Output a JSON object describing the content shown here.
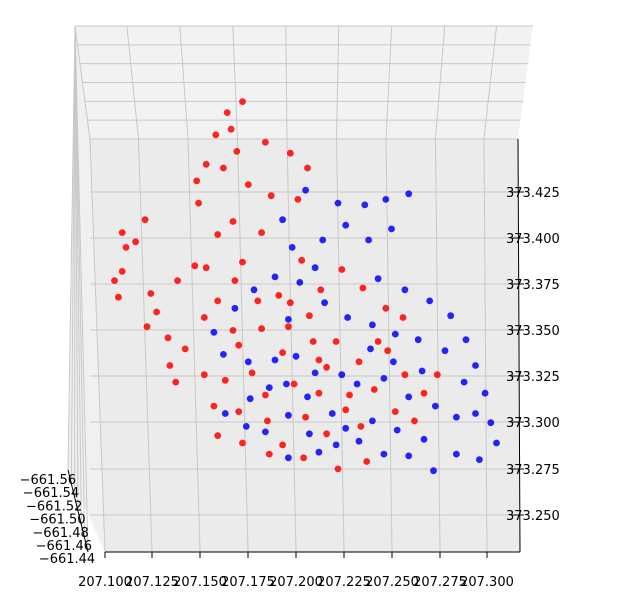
{
  "chart_data": {
    "type": "scatter3d",
    "title": "",
    "xlabel": "",
    "ylabel": "",
    "zlabel": "",
    "grid": true,
    "legend": "none",
    "x_ticks": [
      "207.100",
      "207.125",
      "207.150",
      "207.175",
      "207.200",
      "207.225",
      "207.250",
      "207.275",
      "207.300"
    ],
    "y_ticks": [
      "−661.56",
      "−661.54",
      "−661.52",
      "−661.50",
      "−661.48",
      "−661.46",
      "−661.44"
    ],
    "z_ticks": [
      "373.425",
      "373.400",
      "373.375",
      "373.350",
      "373.325",
      "373.300",
      "373.275",
      "373.250"
    ],
    "series": [
      {
        "color": "#ff0000",
        "points": [
          [
            207.149,
            373.419
          ],
          [
            207.159,
            373.402
          ],
          [
            207.147,
            373.385
          ],
          [
            207.133,
            373.346
          ],
          [
            207.127,
            373.36
          ],
          [
            207.116,
            373.398
          ],
          [
            207.111,
            373.395
          ],
          [
            207.109,
            373.382
          ],
          [
            207.105,
            373.377
          ],
          [
            207.107,
            373.368
          ],
          [
            207.124,
            373.37
          ],
          [
            207.138,
            373.377
          ],
          [
            207.153,
            373.384
          ],
          [
            207.172,
            373.387
          ],
          [
            207.18,
            373.366
          ],
          [
            207.167,
            373.35
          ],
          [
            207.152,
            373.357
          ],
          [
            207.142,
            373.34
          ],
          [
            207.134,
            373.331
          ],
          [
            207.137,
            373.322
          ],
          [
            207.152,
            373.326
          ],
          [
            207.157,
            373.309
          ],
          [
            207.17,
            373.306
          ],
          [
            207.185,
            373.301
          ],
          [
            207.193,
            373.288
          ],
          [
            207.204,
            373.281
          ],
          [
            207.222,
            373.275
          ],
          [
            207.237,
            373.279
          ],
          [
            207.234,
            373.298
          ],
          [
            207.228,
            373.315
          ],
          [
            207.216,
            373.33
          ],
          [
            207.209,
            373.344
          ],
          [
            207.196,
            373.352
          ],
          [
            207.191,
            373.369
          ],
          [
            207.203,
            373.388
          ],
          [
            207.224,
            373.383
          ],
          [
            207.235,
            373.373
          ],
          [
            207.247,
            373.362
          ],
          [
            207.256,
            373.357
          ],
          [
            207.248,
            373.339
          ],
          [
            207.257,
            373.326
          ],
          [
            207.267,
            373.316
          ],
          [
            207.262,
            373.301
          ],
          [
            207.252,
            373.306
          ],
          [
            207.241,
            373.318
          ],
          [
            207.233,
            373.333
          ],
          [
            207.221,
            373.344
          ],
          [
            207.207,
            373.358
          ],
          [
            207.193,
            373.338
          ],
          [
            207.177,
            373.327
          ],
          [
            207.17,
            373.342
          ],
          [
            207.163,
            373.323
          ],
          [
            207.184,
            373.315
          ],
          [
            207.199,
            373.321
          ],
          [
            207.212,
            373.316
          ],
          [
            207.226,
            373.307
          ],
          [
            207.216,
            373.294
          ],
          [
            207.205,
            373.303
          ],
          [
            207.186,
            373.283
          ],
          [
            207.172,
            373.289
          ],
          [
            207.159,
            373.293
          ],
          [
            207.168,
            373.377
          ],
          [
            207.159,
            373.366
          ],
          [
            207.182,
            373.351
          ],
          [
            207.197,
            373.365
          ],
          [
            207.213,
            373.372
          ],
          [
            207.148,
            373.431
          ],
          [
            207.162,
            373.438
          ],
          [
            207.169,
            373.447
          ],
          [
            207.184,
            373.452
          ],
          [
            207.197,
            373.446
          ],
          [
            207.206,
            373.438
          ],
          [
            207.175,
            373.429
          ],
          [
            207.187,
            373.423
          ],
          [
            207.201,
            373.421
          ],
          [
            207.182,
            373.403
          ],
          [
            207.167,
            373.409
          ],
          [
            207.153,
            373.44
          ],
          [
            207.158,
            373.456
          ],
          [
            207.164,
            373.468
          ],
          [
            207.172,
            373.474
          ],
          [
            207.166,
            373.459
          ],
          [
            207.121,
            373.41
          ],
          [
            207.109,
            373.403
          ],
          [
            207.122,
            373.352
          ],
          [
            207.212,
            373.334
          ],
          [
            207.274,
            373.326
          ],
          [
            207.243,
            373.344
          ]
        ]
      },
      {
        "color": "#0000ff",
        "points": [
          [
            207.222,
            373.419
          ],
          [
            207.236,
            373.418
          ],
          [
            207.247,
            373.421
          ],
          [
            207.259,
            373.424
          ],
          [
            207.25,
            373.405
          ],
          [
            207.238,
            373.399
          ],
          [
            207.226,
            373.407
          ],
          [
            207.214,
            373.399
          ],
          [
            207.21,
            373.384
          ],
          [
            207.198,
            373.395
          ],
          [
            207.193,
            373.41
          ],
          [
            207.205,
            373.426
          ],
          [
            207.243,
            373.378
          ],
          [
            207.257,
            373.372
          ],
          [
            207.27,
            373.366
          ],
          [
            207.281,
            373.358
          ],
          [
            207.289,
            373.345
          ],
          [
            207.294,
            373.331
          ],
          [
            207.299,
            373.316
          ],
          [
            207.302,
            373.3
          ],
          [
            207.305,
            373.289
          ],
          [
            207.296,
            373.28
          ],
          [
            207.284,
            373.283
          ],
          [
            207.272,
            373.274
          ],
          [
            207.259,
            373.282
          ],
          [
            207.246,
            373.283
          ],
          [
            207.233,
            373.29
          ],
          [
            207.221,
            373.288
          ],
          [
            207.207,
            373.294
          ],
          [
            207.196,
            373.304
          ],
          [
            207.206,
            373.314
          ],
          [
            207.219,
            373.305
          ],
          [
            207.232,
            373.321
          ],
          [
            207.246,
            373.324
          ],
          [
            207.259,
            373.314
          ],
          [
            207.273,
            373.309
          ],
          [
            207.284,
            373.303
          ],
          [
            207.278,
            373.339
          ],
          [
            207.264,
            373.345
          ],
          [
            207.252,
            373.348
          ],
          [
            207.24,
            373.353
          ],
          [
            207.227,
            373.357
          ],
          [
            207.215,
            373.365
          ],
          [
            207.202,
            373.376
          ],
          [
            207.189,
            373.379
          ],
          [
            207.178,
            373.372
          ],
          [
            207.168,
            373.362
          ],
          [
            207.157,
            373.349
          ],
          [
            207.162,
            373.337
          ],
          [
            207.175,
            373.333
          ],
          [
            207.189,
            373.334
          ],
          [
            207.2,
            373.336
          ],
          [
            207.186,
            373.319
          ],
          [
            207.176,
            373.313
          ],
          [
            207.195,
            373.321
          ],
          [
            207.21,
            373.327
          ],
          [
            207.224,
            373.326
          ],
          [
            207.239,
            373.34
          ],
          [
            207.251,
            373.333
          ],
          [
            207.266,
            373.328
          ],
          [
            207.288,
            373.322
          ],
          [
            207.294,
            373.305
          ],
          [
            207.267,
            373.291
          ],
          [
            207.253,
            373.296
          ],
          [
            207.24,
            373.301
          ],
          [
            207.226,
            373.297
          ],
          [
            207.212,
            373.284
          ],
          [
            207.196,
            373.281
          ],
          [
            207.184,
            373.295
          ],
          [
            207.174,
            373.298
          ],
          [
            207.163,
            373.305
          ],
          [
            207.196,
            373.356
          ]
        ]
      }
    ]
  }
}
